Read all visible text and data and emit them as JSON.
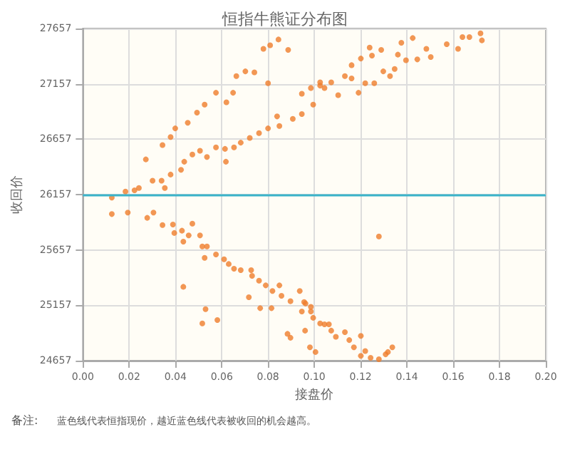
{
  "chart_data": {
    "type": "scatter",
    "title": "恒指牛熊证分布图",
    "xlabel": "接盘价",
    "ylabel": "收回价",
    "annotations": [
      "备注:",
      "蓝色线代表恒指现价，越近蓝色线代表被收回的机会越高。"
    ],
    "x": [
      0.0125,
      0.0184,
      0.0223,
      0.0242,
      0.0301,
      0.034,
      0.0354,
      0.0379,
      0.0272,
      0.0424,
      0.0438,
      0.0473,
      0.0506,
      0.0536,
      0.0575,
      0.0614,
      0.0618,
      0.0653,
      0.0682,
      0.0721,
      0.0761,
      0.08,
      0.0849,
      0.0907,
      0.0946,
      0.0995,
      0.1025,
      0.0344,
      0.0379,
      0.0399,
      0.0453,
      0.0493,
      0.0526,
      0.0575,
      0.062,
      0.0649,
      0.0663,
      0.0702,
      0.0741,
      0.08,
      0.078,
      0.0809,
      0.0845,
      0.0887,
      0.0839,
      0.0946,
      0.0985,
      0.1025,
      0.1073,
      0.1103,
      0.1132,
      0.1161,
      0.1201,
      0.1249,
      0.1289,
      0.1191,
      0.122,
      0.1259,
      0.1298,
      0.1327,
      0.1347,
      0.1376,
      0.1425,
      0.1361,
      0.1396,
      0.1445,
      0.1484,
      0.1503,
      0.1572,
      0.1621,
      0.164,
      0.167,
      0.1718,
      0.1724,
      0.1239,
      0.1044,
      0.1161,
      0.0125,
      0.0194,
      0.0278,
      0.0305,
      0.0344,
      0.0389,
      0.0395,
      0.0428,
      0.0457,
      0.0434,
      0.0473,
      0.0506,
      0.0516,
      0.0536,
      0.0526,
      0.0575,
      0.061,
      0.063,
      0.0653,
      0.0682,
      0.0727,
      0.0731,
      0.0761,
      0.079,
      0.0819,
      0.0849,
      0.0858,
      0.0897,
      0.0937,
      0.0962,
      0.0985,
      0.1025,
      0.0434,
      0.0516,
      0.053,
      0.0581,
      0.0717,
      0.0766,
      0.0815,
      0.0884,
      0.0897,
      0.096,
      0.0981,
      0.1005,
      0.0946,
      0.1279,
      0.0956,
      0.0985,
      0.0995,
      0.1044,
      0.1063,
      0.1073,
      0.1093,
      0.1132,
      0.1151,
      0.1171,
      0.1201,
      0.1201,
      0.122,
      0.1243,
      0.1279,
      0.1318,
      0.1337,
      0.1308
    ],
    "values": [
      26130,
      26184,
      26196,
      26217,
      26282,
      26282,
      26217,
      26338,
      26475,
      26381,
      26454,
      26519,
      26553,
      26497,
      26583,
      26570,
      26454,
      26583,
      26626,
      26669,
      26712,
      26755,
      26777,
      26841,
      26884,
      26970,
      27141,
      26604,
      26677,
      26755,
      26806,
      26897,
      26970,
      27077,
      26991,
      27077,
      27227,
      27270,
      27261,
      27163,
      27473,
      27506,
      27558,
      27464,
      26863,
      27068,
      27120,
      27171,
      27171,
      27055,
      27227,
      27326,
      27386,
      27412,
      27464,
      27077,
      27163,
      27163,
      27270,
      27227,
      27292,
      27528,
      27571,
      27421,
      27370,
      27378,
      27473,
      27399,
      27515,
      27473,
      27580,
      27580,
      27614,
      27550,
      27485,
      27120,
      27206,
      25981,
      25994,
      25947,
      25994,
      25882,
      25887,
      25810,
      25831,
      25788,
      25732,
      25895,
      25788,
      25689,
      25689,
      25586,
      25616,
      25573,
      25530,
      25488,
      25475,
      25475,
      25423,
      25380,
      25337,
      25286,
      25337,
      25243,
      25194,
      25286,
      25173,
      25101,
      24993,
      25324,
      24993,
      25122,
      25024,
      25230,
      25131,
      25131,
      24899,
      24864,
      24928,
      24778,
      24735,
      25101,
      25779,
      25186,
      25143,
      25044,
      24985,
      24985,
      24928,
      24873,
      24915,
      24843,
      24778,
      24881,
      24700,
      24744,
      24683,
      24670,
      24735,
      24778,
      24714
    ],
    "color": "#ef7d2c",
    "marker": "circle",
    "xlim": [
      0,
      0.2
    ],
    "xticks": [
      {
        "value": 0,
        "label": "0.00"
      },
      {
        "value": 0.02,
        "label": "0.02"
      },
      {
        "value": 0.04,
        "label": "0.04"
      },
      {
        "value": 0.06,
        "label": "0.06"
      },
      {
        "value": 0.08,
        "label": "0.08"
      },
      {
        "value": 0.1,
        "label": "0.10"
      },
      {
        "value": 0.12,
        "label": "0.12"
      },
      {
        "value": 0.14,
        "label": "0.14"
      },
      {
        "value": 0.16,
        "label": "0.16"
      },
      {
        "value": 0.18,
        "label": "0.18"
      },
      {
        "value": 0.2,
        "label": "0.20"
      }
    ],
    "ylim": [
      24657,
      27657
    ],
    "yticks": [
      24657,
      25157,
      25657,
      26157,
      26657,
      27157,
      27657
    ],
    "ref_lines": [
      {
        "axis": "y",
        "value": 26157,
        "color": "#3ab3c9"
      }
    ],
    "grid": true
  }
}
